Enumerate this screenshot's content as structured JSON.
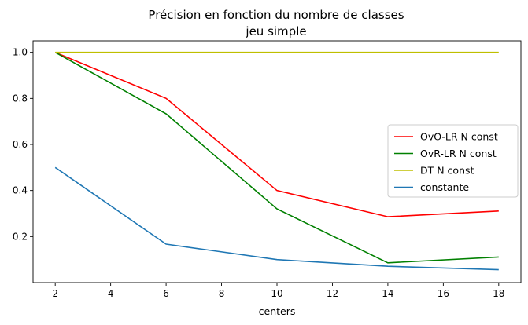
{
  "chart_data": {
    "type": "line",
    "title": "Précision en fonction du nombre de classes",
    "subtitle": "jeu simple",
    "xlabel": "centers",
    "ylabel": "",
    "x": [
      2,
      6,
      10,
      14,
      18
    ],
    "xlim": [
      1.2,
      18.8
    ],
    "ylim": [
      0.0,
      1.05
    ],
    "xticks": [
      2,
      4,
      6,
      8,
      10,
      12,
      14,
      16,
      18
    ],
    "yticks": [
      0.2,
      0.4,
      0.6,
      0.8,
      1.0
    ],
    "grid": false,
    "legend_position": "center-right",
    "series": [
      {
        "name": "OvO-LR N const",
        "color": "#ff0000",
        "values": [
          1.0,
          0.8,
          0.4,
          0.286,
          0.311
        ]
      },
      {
        "name": "OvR-LR N const",
        "color": "#008000",
        "values": [
          1.0,
          0.733,
          0.32,
          0.086,
          0.111
        ]
      },
      {
        "name": "DT N const",
        "color": "#bfbf00",
        "values": [
          1.0,
          1.0,
          1.0,
          1.0,
          1.0
        ]
      },
      {
        "name": "constante",
        "color": "#1f77b4",
        "values": [
          0.5,
          0.167,
          0.1,
          0.071,
          0.056
        ]
      }
    ]
  }
}
